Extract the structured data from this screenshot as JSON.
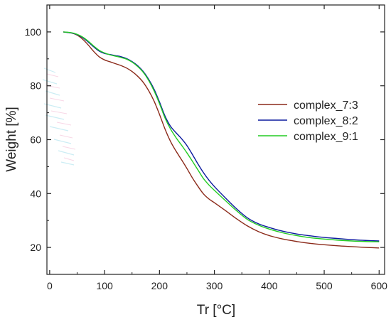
{
  "chart_data": {
    "type": "line",
    "title": "",
    "xlabel": "Tr [°C]",
    "ylabel": "Weight [%]",
    "xlim": [
      -5,
      610
    ],
    "ylim": [
      10,
      110
    ],
    "x_ticks": [
      0,
      100,
      200,
      300,
      400,
      500,
      600
    ],
    "y_ticks": [
      20,
      40,
      60,
      80,
      100
    ],
    "grid": false,
    "legend_position": "right",
    "series": [
      {
        "name": "complex_7:3",
        "color": "#8b2a1a",
        "x": [
          25,
          40,
          50,
          60,
          70,
          80,
          90,
          100,
          110,
          120,
          130,
          140,
          150,
          160,
          170,
          180,
          190,
          200,
          210,
          220,
          230,
          240,
          250,
          260,
          270,
          280,
          290,
          300,
          320,
          340,
          360,
          380,
          400,
          425,
          450,
          475,
          500,
          525,
          550,
          575,
          600
        ],
        "y": [
          100,
          99.6,
          98.8,
          97.3,
          95.2,
          92.8,
          90.8,
          89.6,
          88.9,
          88.2,
          87.5,
          86.6,
          85.3,
          83.6,
          81.4,
          78.3,
          74.4,
          69.4,
          64.0,
          59.4,
          55.8,
          52.6,
          49.3,
          45.8,
          42.7,
          39.9,
          38.0,
          36.6,
          33.7,
          30.7,
          28.0,
          25.9,
          24.4,
          23.1,
          22.2,
          21.5,
          21.0,
          20.6,
          20.3,
          20.0,
          19.8
        ]
      },
      {
        "name": "complex_8:2",
        "color": "#0b1a9e",
        "x": [
          25,
          40,
          50,
          60,
          70,
          80,
          90,
          100,
          110,
          120,
          130,
          140,
          150,
          160,
          170,
          180,
          190,
          200,
          210,
          220,
          230,
          240,
          250,
          260,
          270,
          280,
          290,
          300,
          320,
          340,
          360,
          380,
          400,
          425,
          450,
          475,
          500,
          525,
          550,
          575,
          600
        ],
        "y": [
          100,
          99.6,
          99.0,
          97.9,
          96.3,
          94.5,
          92.9,
          92.0,
          91.6,
          91.2,
          90.8,
          90.1,
          89.0,
          87.5,
          85.4,
          82.5,
          78.8,
          74.0,
          68.8,
          65.0,
          62.6,
          60.4,
          57.8,
          54.5,
          51.0,
          47.8,
          45.0,
          42.6,
          38.4,
          34.4,
          31.0,
          28.8,
          27.4,
          26.0,
          25.0,
          24.3,
          23.7,
          23.3,
          22.9,
          22.6,
          22.4
        ]
      },
      {
        "name": "complex_9:1",
        "color": "#22cc22",
        "x": [
          25,
          40,
          50,
          60,
          70,
          80,
          90,
          100,
          110,
          120,
          130,
          140,
          150,
          160,
          170,
          180,
          190,
          200,
          210,
          220,
          230,
          240,
          250,
          260,
          270,
          280,
          290,
          300,
          320,
          340,
          360,
          380,
          400,
          425,
          450,
          475,
          500,
          525,
          550,
          575,
          600
        ],
        "y": [
          100,
          99.7,
          99.1,
          98.1,
          96.6,
          94.8,
          93.2,
          92.2,
          91.5,
          91.0,
          90.5,
          89.9,
          88.8,
          87.2,
          85.1,
          82.1,
          78.2,
          73.4,
          68.1,
          64.0,
          60.8,
          58.0,
          55.1,
          52.0,
          48.8,
          45.6,
          43.2,
          41.2,
          37.4,
          33.7,
          30.4,
          28.3,
          26.8,
          25.4,
          24.4,
          23.6,
          23.1,
          22.7,
          22.4,
          22.2,
          22.1
        ]
      }
    ]
  }
}
